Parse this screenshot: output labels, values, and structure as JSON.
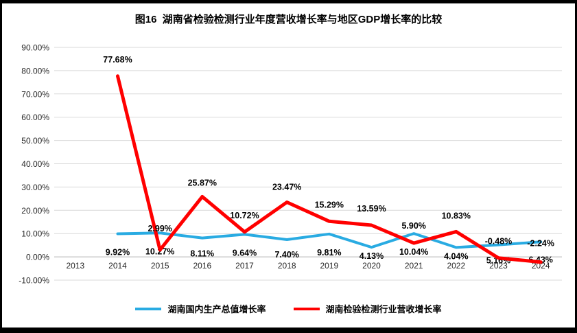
{
  "chart_data": {
    "type": "line",
    "title": "图16  湖南省检验检测行业年度营收增长率与地区GDP增长率的比较",
    "categories": [
      "2013",
      "2014",
      "2015",
      "2016",
      "2017",
      "2018",
      "2019",
      "2020",
      "2021",
      "2022",
      "2023",
      "2024"
    ],
    "series": [
      {
        "name": "湖南国内生产总值增长率",
        "color": "#29ABE2",
        "values": [
          null,
          9.92,
          10.27,
          8.11,
          9.64,
          7.4,
          9.81,
          4.13,
          10.04,
          4.04,
          5.16,
          6.43
        ],
        "labels": [
          null,
          "9.92%",
          "10.27%",
          "8.11%",
          "9.64%",
          "7.40%",
          "9.81%",
          "4.13%",
          "10.04%",
          "4.04%",
          "5.16%",
          "6.43%"
        ]
      },
      {
        "name": "湖南检验检测行业营收增长率",
        "color": "#FF0000",
        "values": [
          null,
          77.68,
          2.99,
          25.87,
          10.72,
          23.47,
          15.29,
          13.59,
          5.9,
          10.83,
          -0.48,
          -2.24
        ],
        "labels": [
          null,
          "77.68%",
          "2.99%",
          "25.87%",
          "10.72%",
          "23.47%",
          "15.29%",
          "13.59%",
          "5.90%",
          "10.83%",
          "-0.48%",
          "-2.24%"
        ]
      }
    ],
    "xlabel": "",
    "ylabel": "",
    "ylim": [
      -10,
      90
    ],
    "ytick_step": 10,
    "ytick_labels": [
      "90.00%",
      "80.00%",
      "70.00%",
      "60.00%",
      "50.00%",
      "40.00%",
      "30.00%",
      "20.00%",
      "10.00%",
      "0.00%",
      "-10.00%"
    ],
    "grid": true,
    "legend_position": "bottom"
  }
}
